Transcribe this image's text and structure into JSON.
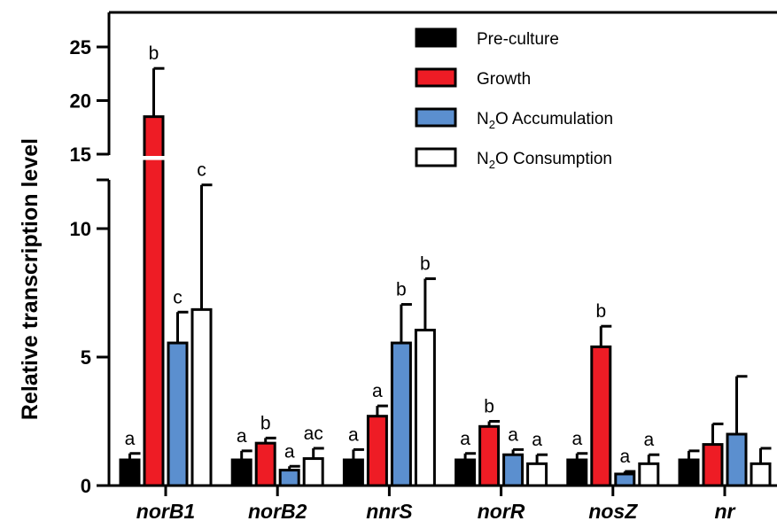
{
  "chart_data": {
    "type": "bar",
    "ylabel": "Relative transcription level",
    "xlabel": "",
    "categories": [
      "norB1",
      "norB2",
      "nnrS",
      "norR",
      "nosZ",
      "nr"
    ],
    "y_axis_break": [
      12.6,
      15
    ],
    "ylim_lower": [
      0,
      12.6
    ],
    "ylim_upper": [
      15,
      27
    ],
    "ticks_lower": [
      "0",
      "5",
      "10"
    ],
    "ticks_upper": [
      "15",
      "20",
      "25"
    ],
    "legend_position": "top-right",
    "series": [
      {
        "name": "Pre-culture",
        "color": "#000000",
        "values": [
          1.0,
          1.0,
          1.0,
          1.0,
          1.0,
          1.0
        ],
        "errors": [
          0.25,
          0.35,
          0.4,
          0.25,
          0.25,
          0.35
        ],
        "letters": [
          "a",
          "a",
          "a",
          "a",
          "a",
          ""
        ]
      },
      {
        "name": "Growth",
        "color": "#ee1c25",
        "values": [
          18.5,
          1.65,
          2.7,
          2.3,
          5.4,
          1.6
        ],
        "errors": [
          4.5,
          0.2,
          0.4,
          0.2,
          0.8,
          0.8
        ],
        "letters": [
          "b",
          "b",
          "a",
          "b",
          "b",
          ""
        ]
      },
      {
        "name": "N2O Accumulation",
        "name_main": "N",
        "name_sub": "2",
        "name_rest": "O Accumulation",
        "color": "#5b8fcf",
        "values": [
          5.55,
          0.6,
          5.55,
          1.2,
          0.45,
          2.0
        ],
        "errors": [
          1.2,
          0.15,
          1.5,
          0.2,
          0.1,
          2.25
        ],
        "letters": [
          "c",
          "a",
          "b",
          "a",
          "a",
          ""
        ]
      },
      {
        "name": "N2O Consumption",
        "name_main": "N",
        "name_sub": "2",
        "name_rest": "O Consumption",
        "color": "#ffffff",
        "values": [
          6.85,
          1.05,
          6.05,
          0.85,
          0.85,
          0.85
        ],
        "errors": [
          4.85,
          0.4,
          2.0,
          0.35,
          0.35,
          0.6
        ],
        "letters": [
          "c",
          "ac",
          "b",
          "a",
          "a",
          ""
        ]
      }
    ]
  }
}
